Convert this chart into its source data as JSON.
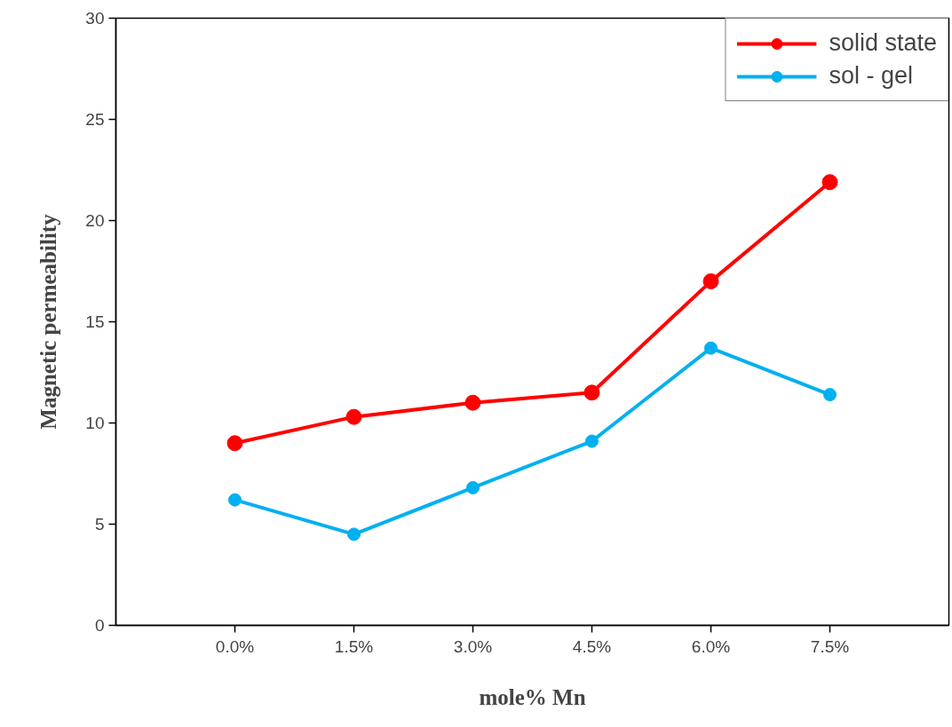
{
  "chart_data": {
    "type": "line",
    "xlabel": "mole% Mn",
    "ylabel": "Magnetic permeability",
    "categories": [
      "0.0%",
      "1.5%",
      "3.0%",
      "4.5%",
      "6.0%",
      "7.5%"
    ],
    "series": [
      {
        "name": "solid state",
        "color": "#ff0000",
        "values": [
          9.0,
          10.3,
          11.0,
          11.5,
          17.0,
          21.9
        ]
      },
      {
        "name": "sol - gel",
        "color": "#00b0f0",
        "values": [
          6.2,
          4.5,
          6.8,
          9.1,
          13.7,
          11.4
        ]
      }
    ],
    "ylim": [
      0,
      30
    ],
    "yticks": [
      0,
      5,
      10,
      15,
      20,
      25,
      30
    ],
    "grid": false,
    "legend": "top right",
    "marker": "circle",
    "line_style": "solid"
  }
}
